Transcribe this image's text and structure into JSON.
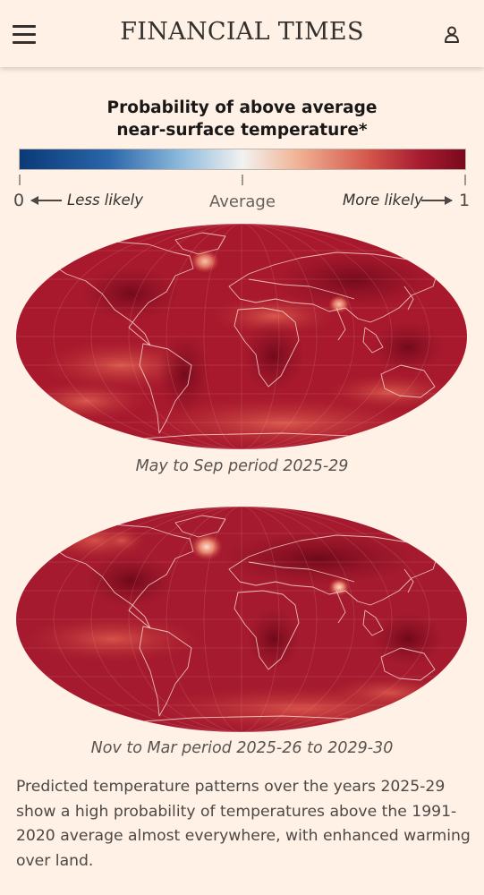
{
  "header": {
    "brand": "FINANCIAL TIMES",
    "menu_icon": "hamburger-menu-icon",
    "account_icon": "user-account-icon"
  },
  "legend": {
    "title_line1": "Probability of above average",
    "title_line2": "near-surface temperature*",
    "min_label": "0",
    "max_label": "1",
    "left_text": "Less likely",
    "center_text": "Average",
    "right_text": "More likely",
    "colors": {
      "low": "#0a3a78",
      "mid": "#f2f2f0",
      "high": "#7a0a1c"
    }
  },
  "maps": [
    {
      "caption": "May to Sep period 2025-29"
    },
    {
      "caption": "Nov to Mar period  2025-26 to 2029-30"
    }
  ],
  "description": "Predicted temperature patterns over the years 2025-29 show a high probability of temperatures above the 1991-2020 average almost everywhere, with enhanced warming over land.",
  "colors": {
    "page_background": "#fff1e5",
    "map_base": "#a8192d",
    "map_dark": "#7d0d1f",
    "map_light": "#d9544a",
    "hotspot": "#f4b9a0",
    "borders": "#f6d9d0"
  }
}
